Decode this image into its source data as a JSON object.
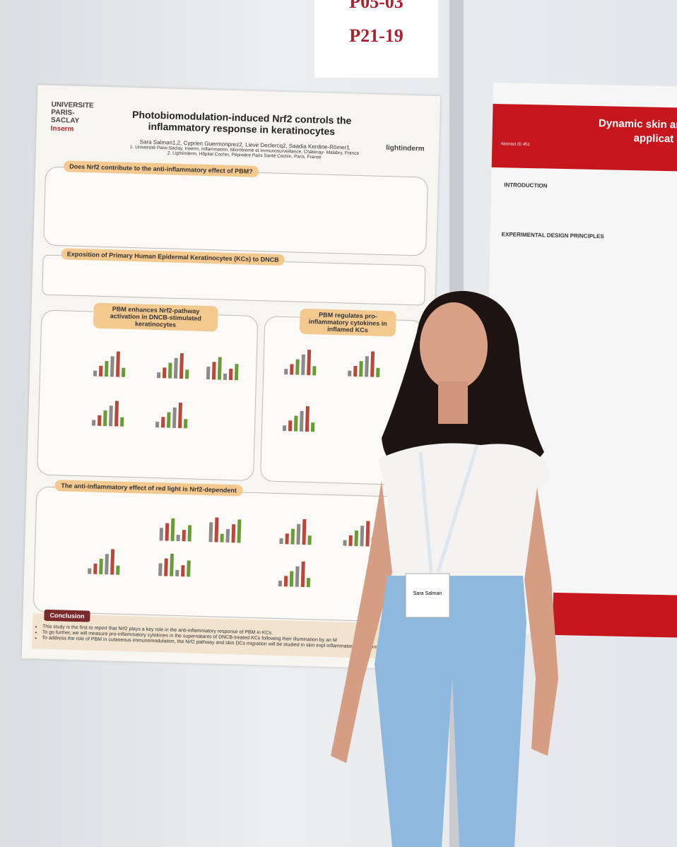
{
  "board_label": {
    "top": "P05-03",
    "main": "P21-19"
  },
  "poster": {
    "title": "Photobiomodulation-induced Nrf2 controls the inflammatory response in keratinocytes",
    "authors": "Sara Salman1,2, Cyprien Guermonprez2, Lieve Declercq2, Saadia Kerdine-Römer1",
    "affiliations": [
      "1. Université Paris-Saclay, Inserm, Inflammation, Microbiome et Immunosurveillance, Châtenay- Malabry, France",
      "2. Lightinderm, Hôpital Cochin, Pépinière Paris Santé Cochin, Paris, France"
    ],
    "logos": [
      "UNIVERSITE PARIS-SACLAY",
      "Inserm",
      "lightinderm"
    ],
    "sections": [
      "Does Nrf2 contribute to the anti-inflammatory effect of PBM?",
      "Exposition of Primary Human Epidermal Keratinocytes (KCs) to DNCB",
      "PBM enhances Nrf2-pathway activation in DNCB-stimulated keratinocytes",
      "PBM regulates pro-inflammatory cytokines in inflamed KCs",
      "The anti-inflammatory effect of red light is Nrf2-dependent",
      "Conclusion"
    ],
    "conclusion": [
      "This study is the first to report that Nrf2 plays a key role in the anti-inflammatory response of PBM in KCs.",
      "To go further, we will measure pro-inflammatory cytokines in the supernatants of DNCB-treated KCs following their illumination by an M",
      "To address the role of PBM in cutaneous immunomodulation, the Nrf2 pathway and skin DCs migration will be studied in skin expl inflammatory conditions."
    ]
  },
  "right_poster": {
    "title": "Dynamic skin and l",
    "subtitle": "applicat",
    "abstract_id": "Abstract ID 451",
    "headings": [
      "INTRODUCTION",
      "EXPERIMENTAL DESIGN PRINCIPLES"
    ]
  },
  "badge": {
    "name": "Sara Salman"
  }
}
